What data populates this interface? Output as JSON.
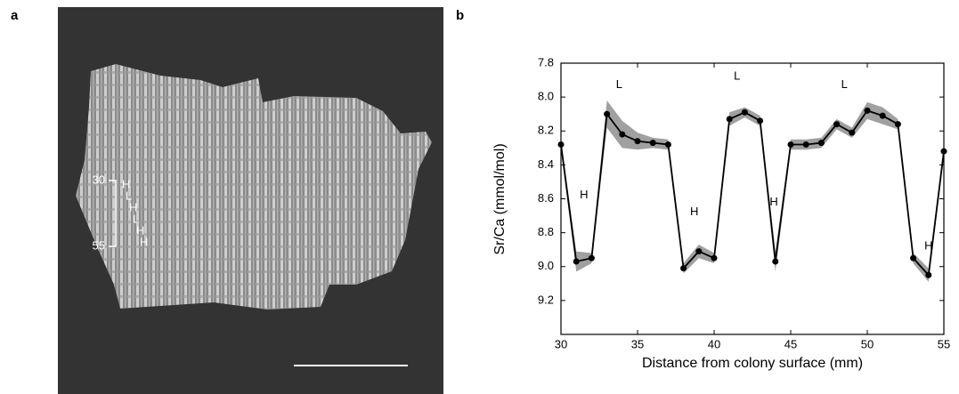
{
  "panel_a": {
    "label": "a",
    "scale_top": "30",
    "scale_bottom": "55",
    "bands": [
      "H",
      "L",
      "H",
      "L",
      "H",
      "H"
    ]
  },
  "chart_data": {
    "type": "line",
    "panel_label": "b",
    "x_label": "Distance from colony surface (mm)",
    "y_label": "Sr/Ca (mmol/mol)",
    "x": [
      30,
      31,
      32,
      33,
      34,
      35,
      36,
      37,
      38,
      39,
      40,
      41,
      42,
      43,
      44,
      45,
      46,
      47,
      48,
      49,
      50,
      51,
      52,
      53,
      54,
      55
    ],
    "values": [
      8.28,
      8.97,
      8.95,
      8.1,
      8.22,
      8.26,
      8.27,
      8.28,
      9.01,
      8.91,
      8.95,
      8.13,
      8.09,
      8.14,
      8.97,
      8.28,
      8.28,
      8.27,
      8.16,
      8.21,
      8.08,
      8.11,
      8.16,
      8.95,
      9.05,
      8.32
    ],
    "errors": [
      0.03,
      0.06,
      0.03,
      0.08,
      0.08,
      0.05,
      0.03,
      0.03,
      0.03,
      0.04,
      0.03,
      0.04,
      0.03,
      0.03,
      0.06,
      0.03,
      0.03,
      0.03,
      0.03,
      0.03,
      0.05,
      0.05,
      0.03,
      0.03,
      0.04,
      0.03
    ],
    "color": "#000000",
    "band_color": "#a0a0a0",
    "xlim": [
      30,
      55
    ],
    "xticks": [
      30,
      35,
      40,
      45,
      50,
      55
    ],
    "ylim": [
      7.8,
      9.4
    ],
    "y_inverted": true,
    "yticks": [
      7.8,
      {
        "value": 8,
        "label": "8.0"
      },
      8.2,
      8.4,
      8.6,
      8.8,
      {
        "value": 9,
        "label": "9.0"
      },
      9.2
    ],
    "annotations": [
      {
        "text": "L",
        "x": 33.8,
        "y": 7.93
      },
      {
        "text": "L",
        "x": 41.5,
        "y": 7.88
      },
      {
        "text": "L",
        "x": 48.5,
        "y": 7.93
      },
      {
        "text": "H",
        "x": 31.5,
        "y": 8.58
      },
      {
        "text": "H",
        "x": 38.7,
        "y": 8.68
      },
      {
        "text": "H",
        "x": 43.9,
        "y": 8.62
      },
      {
        "text": "H",
        "x": 54,
        "y": 8.88
      }
    ]
  }
}
